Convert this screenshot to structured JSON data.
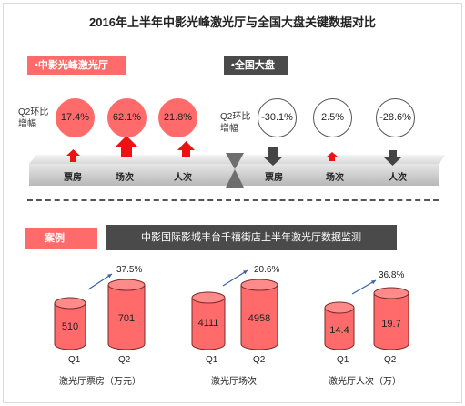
{
  "title": "2016年上半年中影光峰激光厅与全国大盘关键数据对比",
  "left_tag": "•中影光峰激光厅",
  "right_tag": "•全国大盘",
  "q2_label_line1": "Q2环比",
  "q2_label_line2": "增幅",
  "laser": [
    {
      "metric": "票房",
      "value": "17.4%",
      "direction": "up"
    },
    {
      "metric": "场次",
      "value": "62.1%",
      "direction": "up"
    },
    {
      "metric": "人次",
      "value": "21.8%",
      "direction": "up"
    }
  ],
  "national": [
    {
      "metric": "票房",
      "value": "-30.1%",
      "direction": "down"
    },
    {
      "metric": "场次",
      "value": "2.5%",
      "direction": "up"
    },
    {
      "metric": "人次",
      "value": "-28.6%",
      "direction": "down"
    }
  ],
  "case_tag": "案例",
  "case_title": "中影国际影城丰台千禧街店上半年激光厅数据监测",
  "quarter_labels": [
    "Q1",
    "Q2"
  ],
  "cases": [
    {
      "caption": "激光厅票房（万元）",
      "q1": "510",
      "q2": "701",
      "growth": "37.5%"
    },
    {
      "caption": "激光厅场次",
      "q1": "4111",
      "q2": "4958",
      "growth": "20.6%"
    },
    {
      "caption": "激光厅人次（万）",
      "q1": "14.4",
      "q2": "19.7",
      "growth": "36.8%"
    }
  ],
  "colors": {
    "accent": "#ff6b6b",
    "dark": "#4a4a4a",
    "arrow_red": "#ee1111",
    "arrow_dark": "#444444"
  }
}
